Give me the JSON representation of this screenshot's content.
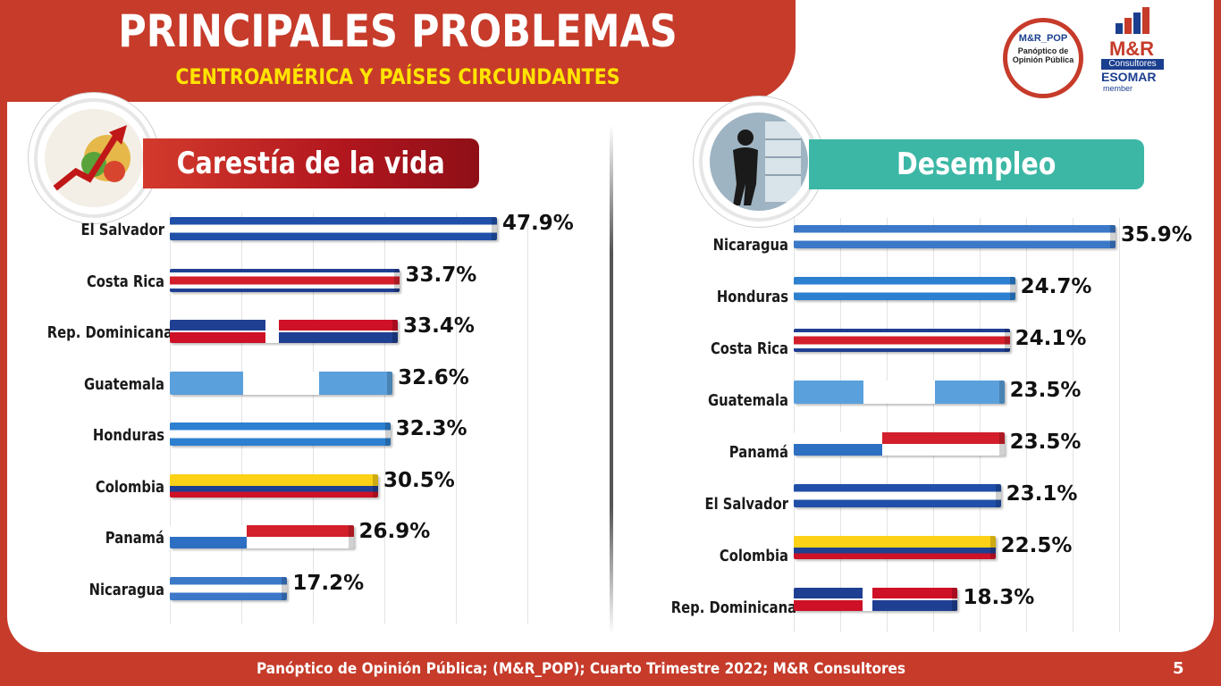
{
  "header": {
    "title": "PRINCIPALES PROBLEMAS",
    "subtitle": "CENTROAMÉRICA Y PAÍSES CIRCUNDANTES"
  },
  "logos": {
    "pop_name": "M&R_POP",
    "pop_line1": "Panóptico de",
    "pop_line2": "Opinión Pública",
    "mr_name": "M&R",
    "mr_consult": "Consultores",
    "esomar": "ESOMAR",
    "member": "member"
  },
  "footer": {
    "text": "Panóptico de Opinión Pública; (M&R_POP); Cuarto Trimestre 2022; M&R Consultores",
    "page_number": "5"
  },
  "colors": {
    "brand_red": "#c63b2a",
    "accent_yellow": "#ffe400",
    "teal": "#3cb7a5"
  },
  "chart_data": [
    {
      "type": "bar",
      "orientation": "horizontal",
      "title": "Carestía de la vida",
      "categories": [
        "El Salvador",
        "Costa Rica",
        "Rep. Dominicana",
        "Guatemala",
        "Honduras",
        "Colombia",
        "Panamá",
        "Nicaragua"
      ],
      "values": [
        47.9,
        33.7,
        33.4,
        32.6,
        32.3,
        30.5,
        26.9,
        17.2
      ],
      "value_labels": [
        "47.9%",
        "33.7%",
        "33.4%",
        "32.6%",
        "32.3%",
        "30.5%",
        "26.9%",
        "17.2%"
      ],
      "flags": [
        "el-salvador-flag",
        "costa-rica-flag",
        "dominican-republic-flag",
        "guatemala-flag",
        "honduras-flag",
        "colombia-flag",
        "panama-flag",
        "nicaragua-flag"
      ],
      "xlim": [
        0,
        50
      ],
      "grid": true,
      "icon": "rising-prices-icon"
    },
    {
      "type": "bar",
      "orientation": "horizontal",
      "title": "Desempleo",
      "categories": [
        "Nicaragua",
        "Honduras",
        "Costa Rica",
        "Guatemala",
        "Panamá",
        "El Salvador",
        "Colombia",
        "Rep. Dominicana"
      ],
      "values": [
        35.9,
        24.7,
        24.1,
        23.5,
        23.5,
        23.1,
        22.5,
        18.3
      ],
      "value_labels": [
        "35.9%",
        "24.7%",
        "24.1%",
        "23.5%",
        "23.5%",
        "23.1%",
        "22.5%",
        "18.3%"
      ],
      "flags": [
        "nicaragua-flag",
        "honduras-flag",
        "costa-rica-flag",
        "guatemala-flag",
        "panama-flag",
        "el-salvador-flag",
        "colombia-flag",
        "dominican-republic-flag"
      ],
      "xlim": [
        0,
        37
      ],
      "grid": true,
      "icon": "unemployed-person-icon"
    }
  ]
}
